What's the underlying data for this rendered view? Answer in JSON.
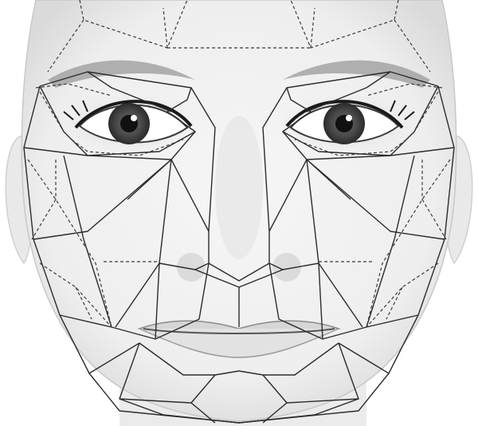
{
  "image": {
    "subject": "face-proportion-mesh",
    "colors": {
      "background": "#ffffff",
      "skin": "#f1f1f1",
      "skin_shadow": "#d9d9d9",
      "solid_line": "#2b2b2b",
      "dashed_line": "#3a3a3a",
      "iris": "#4a4a4a",
      "pupil": "#111111",
      "brow": "#8a8a8a"
    }
  }
}
